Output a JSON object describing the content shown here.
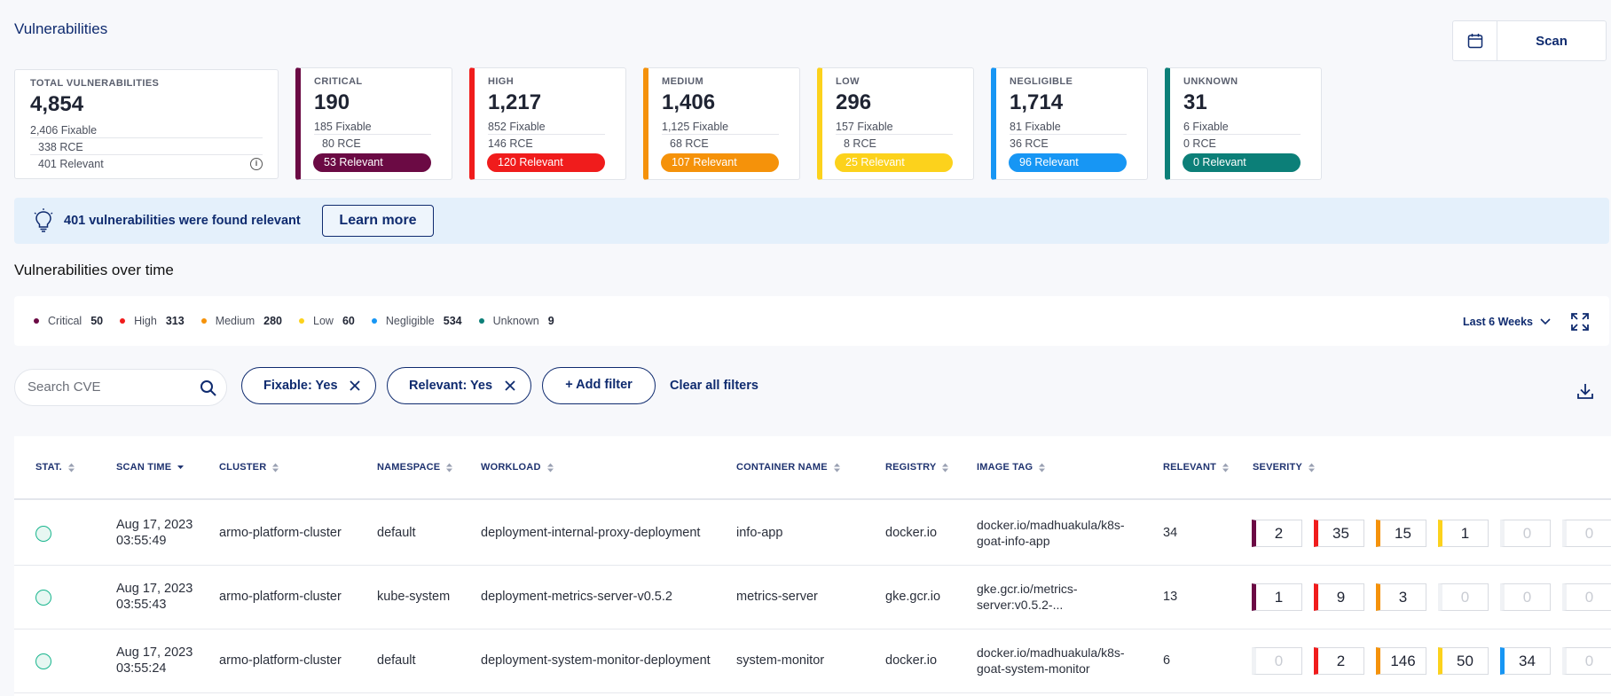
{
  "page": {
    "title": "Vulnerabilities"
  },
  "toolbar": {
    "calendar_icon": "calendar-icon",
    "scan_label": "Scan"
  },
  "summary": {
    "total": {
      "label": "TOTAL VULNERABILITIES",
      "count": "4,854",
      "fixable": "2,406 Fixable",
      "rce": "338 RCE",
      "relevant": "401 Relevant",
      "info_icon": "i"
    },
    "severities": [
      {
        "key": "critical",
        "label": "CRITICAL",
        "count": "190",
        "fixable": "185 Fixable",
        "rce": "80 RCE",
        "relevant": "53 Relevant",
        "color": "#6b0a44"
      },
      {
        "key": "high",
        "label": "HIGH",
        "count": "1,217",
        "fixable": "852 Fixable",
        "rce": "146 RCE",
        "relevant": "120 Relevant",
        "color": "#f01c1c"
      },
      {
        "key": "medium",
        "label": "MEDIUM",
        "count": "1,406",
        "fixable": "1,125 Fixable",
        "rce": "68 RCE",
        "relevant": "107 Relevant",
        "color": "#f5920a"
      },
      {
        "key": "low",
        "label": "LOW",
        "count": "296",
        "fixable": "157 Fixable",
        "rce": "8 RCE",
        "relevant": "25 Relevant",
        "color": "#fcd21c"
      },
      {
        "key": "negligible",
        "label": "NEGLIGIBLE",
        "count": "1,714",
        "fixable": "81 Fixable",
        "rce": "36 RCE",
        "relevant": "96 Relevant",
        "color": "#1796f4"
      },
      {
        "key": "unknown",
        "label": "UNKNOWN",
        "count": "31",
        "fixable": "6 Fixable",
        "rce": "0 RCE",
        "relevant": "0 Relevant",
        "color": "#0c7f78"
      }
    ]
  },
  "banner": {
    "text": "401 vulnerabilities were found relevant",
    "button": "Learn more"
  },
  "over_time": {
    "title": "Vulnerabilities over time",
    "legend": [
      {
        "name": "Critical",
        "value": "50",
        "color": "#6b0a44"
      },
      {
        "name": "High",
        "value": "313",
        "color": "#f01c1c"
      },
      {
        "name": "Medium",
        "value": "280",
        "color": "#f5920a"
      },
      {
        "name": "Low",
        "value": "60",
        "color": "#fcd21c"
      },
      {
        "name": "Negligible",
        "value": "534",
        "color": "#1796f4"
      },
      {
        "name": "Unknown",
        "value": "9",
        "color": "#0c7f78"
      }
    ],
    "range": "Last 6 Weeks"
  },
  "filters": {
    "search_placeholder": "Search CVE",
    "chips": [
      "Fixable: Yes",
      "Relevant: Yes"
    ],
    "add_filter": "+ Add filter",
    "clear_all": "Clear all filters"
  },
  "table": {
    "headers": [
      "STAT.",
      "SCAN TIME",
      "CLUSTER",
      "NAMESPACE",
      "WORKLOAD",
      "CONTAINER NAME",
      "REGISTRY",
      "IMAGE TAG",
      "RELEVANT",
      "SEVERITY"
    ],
    "rows": [
      {
        "date": "Aug 17, 2023",
        "time": "03:55:49",
        "cluster": "armo-platform-cluster",
        "namespace": "default",
        "workload": "deployment-internal-proxy-deployment",
        "container": "info-app",
        "registry": "docker.io",
        "image_tag": "docker.io/madhuakula/k8s-goat-info-app",
        "relevant": "34",
        "severity": [
          "2",
          "35",
          "15",
          "1",
          "0",
          "0"
        ]
      },
      {
        "date": "Aug 17, 2023",
        "time": "03:55:43",
        "cluster": "armo-platform-cluster",
        "namespace": "kube-system",
        "workload": "deployment-metrics-server-v0.5.2",
        "container": "metrics-server",
        "registry": "gke.gcr.io",
        "image_tag": "gke.gcr.io/metrics-server:v0.5.2-...",
        "relevant": "13",
        "severity": [
          "1",
          "9",
          "3",
          "0",
          "0",
          "0"
        ]
      },
      {
        "date": "Aug 17, 2023",
        "time": "03:55:24",
        "cluster": "armo-platform-cluster",
        "namespace": "default",
        "workload": "deployment-system-monitor-deployment",
        "container": "system-monitor",
        "registry": "docker.io",
        "image_tag": "docker.io/madhuakula/k8s-goat-system-monitor",
        "relevant": "6",
        "severity": [
          "0",
          "2",
          "146",
          "50",
          "34",
          "0"
        ]
      }
    ]
  }
}
